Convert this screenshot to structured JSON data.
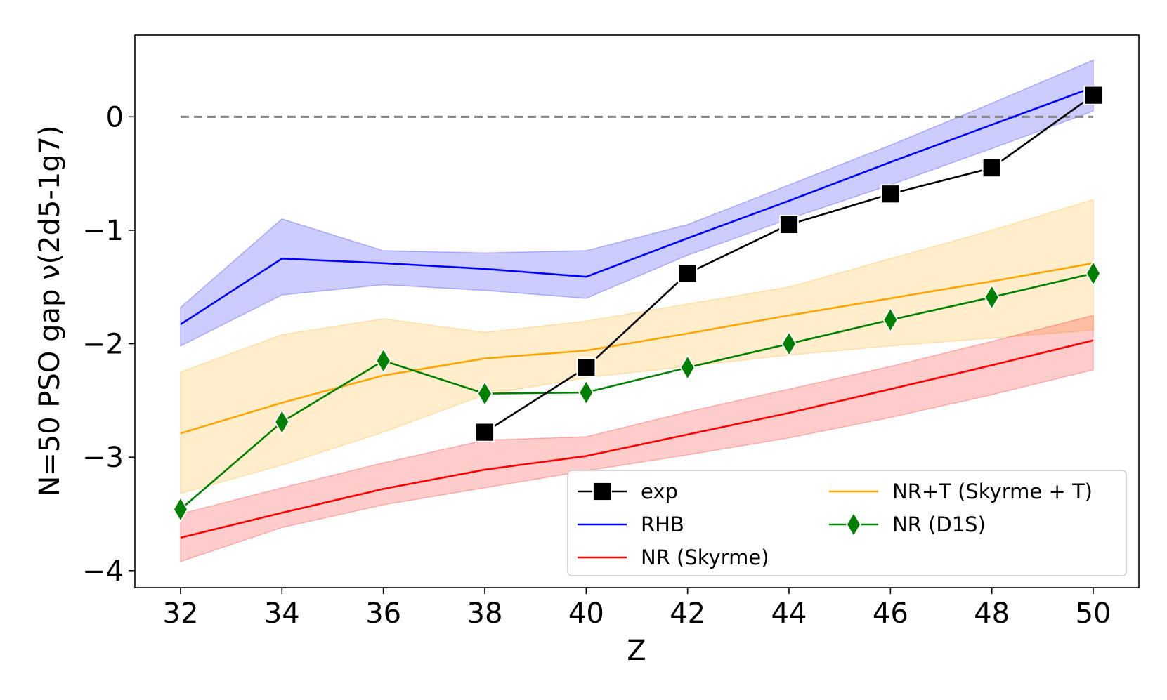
{
  "chart_data": {
    "type": "line",
    "title": "",
    "xlabel": "Z",
    "ylabel": "N=50 PSO gap ν(2d5-1g7)",
    "xlim": [
      31.1,
      50.9
    ],
    "ylim": [
      -4.15,
      0.72
    ],
    "x_ticks": [
      32,
      34,
      36,
      38,
      40,
      42,
      44,
      46,
      48,
      50
    ],
    "x_tick_labels": [
      "32",
      "34",
      "36",
      "38",
      "40",
      "42",
      "44",
      "46",
      "48",
      "50"
    ],
    "y_ticks": [
      -4,
      -3,
      -2,
      -1,
      0
    ],
    "y_tick_labels": [
      "−4",
      "−3",
      "−2",
      "−1",
      "0"
    ],
    "reference_line": {
      "y": 0,
      "color": "#808080",
      "style": "dashed"
    },
    "bands": [
      {
        "name": "RHB band",
        "color": "#0000ff",
        "x": [
          32,
          34,
          36,
          38,
          40,
          42,
          44,
          46,
          48,
          50
        ],
        "lower": [
          -2.02,
          -1.57,
          -1.48,
          -1.53,
          -1.6,
          -1.22,
          -0.9,
          -0.6,
          -0.28,
          0.05
        ],
        "upper": [
          -1.68,
          -0.9,
          -1.18,
          -1.2,
          -1.18,
          -0.95,
          -0.6,
          -0.25,
          0.12,
          0.5
        ]
      },
      {
        "name": "NR+T band",
        "color": "#ffa500",
        "x": [
          32,
          34,
          36,
          38,
          40,
          42,
          44,
          46,
          48,
          50
        ],
        "lower": [
          -3.32,
          -3.07,
          -2.78,
          -2.45,
          -2.3,
          -2.2,
          -2.1,
          -2.02,
          -1.95,
          -1.88
        ],
        "upper": [
          -2.25,
          -1.92,
          -1.78,
          -1.9,
          -1.8,
          -1.65,
          -1.5,
          -1.25,
          -1.0,
          -0.73
        ]
      },
      {
        "name": "NR (Skyrme) band",
        "color": "#ff0000",
        "x": [
          32,
          34,
          36,
          38,
          40,
          42,
          44,
          46,
          48,
          50
        ],
        "lower": [
          -3.92,
          -3.62,
          -3.42,
          -3.27,
          -3.12,
          -2.98,
          -2.83,
          -2.65,
          -2.45,
          -2.23
        ],
        "upper": [
          -3.5,
          -3.27,
          -3.05,
          -2.85,
          -2.82,
          -2.6,
          -2.4,
          -2.2,
          -1.98,
          -1.75
        ]
      }
    ],
    "series": [
      {
        "name": "exp",
        "color": "#000000",
        "marker": "square",
        "x": [
          38,
          40,
          42,
          44,
          46,
          48,
          50
        ],
        "values": [
          -2.78,
          -2.21,
          -1.38,
          -0.95,
          -0.68,
          -0.45,
          0.19
        ]
      },
      {
        "name": "RHB",
        "color": "#0000ff",
        "marker": "none",
        "x": [
          32,
          34,
          36,
          38,
          40,
          42,
          44,
          46,
          48,
          50
        ],
        "values": [
          -1.83,
          -1.25,
          -1.29,
          -1.34,
          -1.41,
          -1.07,
          -0.74,
          -0.4,
          -0.07,
          0.26
        ]
      },
      {
        "name": "NR (Skyrme)",
        "color": "#ff0000",
        "marker": "none",
        "x": [
          32,
          34,
          36,
          38,
          40,
          42,
          44,
          46,
          48,
          50
        ],
        "values": [
          -3.71,
          -3.49,
          -3.28,
          -3.11,
          -2.99,
          -2.8,
          -2.61,
          -2.4,
          -2.19,
          -1.97
        ]
      },
      {
        "name": "NR+T (Skyrme + T)",
        "color": "#ffa500",
        "marker": "none",
        "x": [
          32,
          34,
          36,
          38,
          40,
          42,
          44,
          46,
          48,
          50
        ],
        "values": [
          -2.79,
          -2.52,
          -2.28,
          -2.13,
          -2.06,
          -1.91,
          -1.75,
          -1.6,
          -1.45,
          -1.29
        ]
      },
      {
        "name": "NR (D1S)",
        "color": "#008000",
        "marker": "diamond",
        "x": [
          32,
          34,
          36,
          38,
          40,
          42,
          44,
          46,
          48,
          50
        ],
        "values": [
          -3.46,
          -2.69,
          -2.15,
          -2.44,
          -2.43,
          -2.21,
          -2.0,
          -1.79,
          -1.59,
          -1.38
        ]
      }
    ],
    "legend": {
      "position": "lower-right",
      "columns": 2,
      "entries": [
        "exp",
        "RHB",
        "NR (Skyrme)",
        "NR+T (Skyrme + T)",
        "NR (D1S)"
      ]
    }
  }
}
